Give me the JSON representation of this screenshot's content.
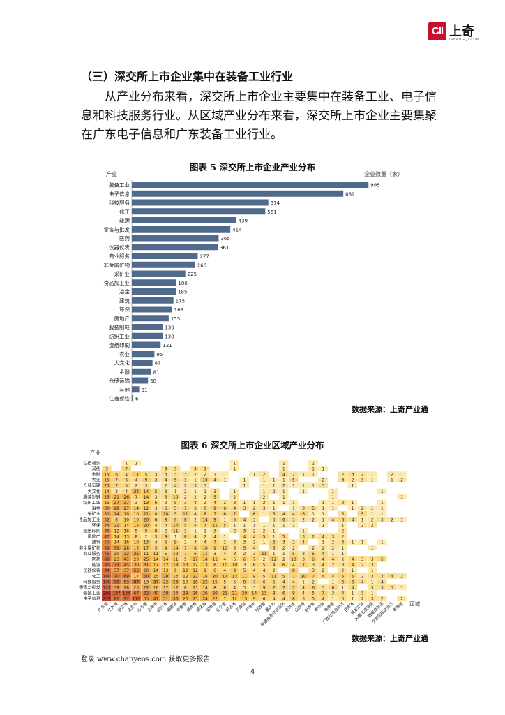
{
  "logo": {
    "text": "上奇",
    "mark": "CII",
    "sub": "ISHANGQI.COM"
  },
  "section_heading": "（三）深交所上市企业集中在装备工业行业",
  "paragraph": {
    "line1": "从产业分布来看，深交所上市企业主要集中在装备工业、电子信",
    "line2": "息和科技服务行业。从区域产业分布来看，深交所上市企业主要集聚",
    "line3": "在广东电子信息和广东装备工业行业。"
  },
  "figure5": {
    "title": "图表 5  深交所上市企业产业分布",
    "source": "数据来源：上奇产业通"
  },
  "figure6": {
    "title": "图表 6  深交所上市企业区域产业分布",
    "source": "数据来源：上奇产业通"
  },
  "footer": {
    "link_text": "登录 www.chanyeos.com 获取更多报告",
    "page_number": "4"
  },
  "chart_data": [
    {
      "type": "bar",
      "orientation": "horizontal",
      "title": "",
      "xlabel": "企业数量（家）",
      "ylabel": "产业",
      "bar_color": "#4f6a8a",
      "categories": [
        "装备工业",
        "电子信息",
        "科技服务",
        "化工",
        "能源",
        "零售与批发",
        "医药",
        "仪器仪表",
        "商业服务",
        "非金属矿物",
        "采矿业",
        "食品加工业",
        "冶金",
        "建筑",
        "环保",
        "房地产",
        "服装制鞋",
        "纺织工业",
        "造纸印刷",
        "农业",
        "大文化",
        "金融",
        "仓储运输",
        "其他",
        "住宿餐饮"
      ],
      "values": [
        995,
        889,
        574,
        561,
        439,
        414,
        365,
        361,
        277,
        266,
        225,
        186,
        185,
        175,
        169,
        155,
        130,
        130,
        121,
        95,
        87,
        81,
        68,
        31,
        6
      ],
      "xlim": [
        0,
        1000
      ]
    },
    {
      "type": "heatmap",
      "title": "",
      "ylabel": "产业",
      "xlabel": "区域",
      "color_low": "#fdf6c8",
      "color_high": "#c0392b",
      "rows": [
        "住宿餐饮",
        "其他",
        "金融",
        "农业",
        "仓储运输",
        "大文化",
        "服装制鞋",
        "纺织工业",
        "冶金",
        "采矿业",
        "食品加工业",
        "环保",
        "造纸印刷",
        "房地产",
        "建筑",
        "非金属矿物",
        "商业服务",
        "医药",
        "能源",
        "仪器仪表",
        "化工",
        "科技服务",
        "零售与批发",
        "装备工业",
        "电子信息"
      ],
      "columns": [
        "广东省",
        "江苏省",
        "浙江省",
        "北京市",
        "山东省",
        "上海市",
        "四川省",
        "福建省",
        "安徽省",
        "湖南省",
        "湖北省",
        "河南省",
        "辽宁省",
        "河北省",
        "江西省",
        "天津市",
        "陕西省",
        "重庆市",
        "新疆维吾尔自治区",
        "吉林省",
        "山西省",
        "云南省",
        "贵州省",
        "海南省",
        "广西壮族自治区",
        "甘肃省",
        "黑龙江省",
        "内蒙古自治区",
        "西藏自治区",
        "宁夏回族自治区",
        "青海省"
      ],
      "values": [
        [
          null,
          null,
          1,
          1,
          null,
          null,
          null,
          null,
          null,
          null,
          null,
          null,
          null,
          1,
          null,
          null,
          null,
          null,
          1,
          null,
          null,
          1,
          null,
          null,
          null,
          null,
          null,
          null,
          null,
          null,
          null
        ],
        [
          3,
          null,
          7,
          null,
          null,
          null,
          3,
          3,
          null,
          3,
          3,
          null,
          null,
          1,
          null,
          null,
          null,
          null,
          1,
          null,
          null,
          1,
          1,
          null,
          null,
          null,
          null,
          null,
          null,
          null,
          null
        ],
        [
          15,
          6,
          4,
          11,
          5,
          3,
          3,
          3,
          3,
          2,
          2,
          1,
          1,
          null,
          null,
          1,
          2,
          null,
          4,
          2,
          1,
          1,
          null,
          null,
          2,
          3,
          2,
          1,
          null,
          2,
          1
        ],
        [
          15,
          7,
          6,
          4,
          9,
          3,
          4,
          5,
          3,
          1,
          10,
          4,
          1,
          null,
          1,
          null,
          1,
          1,
          1,
          5,
          null,
          null,
          2,
          null,
          3,
          2,
          3,
          1,
          null,
          1,
          2
        ],
        [
          20,
          7,
          5,
          2,
          3,
          null,
          2,
          4,
          2,
          3,
          3,
          null,
          null,
          null,
          1,
          null,
          1,
          1,
          2,
          1,
          1,
          1,
          3,
          null,
          null,
          1,
          null,
          null,
          null,
          null,
          null
        ],
        [
          14,
          2,
          4,
          24,
          14,
          5,
          3,
          1,
          2,
          1,
          1,
          3,
          null,
          1,
          null,
          null,
          1,
          2,
          1,
          null,
          1,
          null,
          null,
          1,
          null,
          null,
          null,
          null,
          1,
          null,
          null
        ],
        [
          25,
          21,
          26,
          7,
          14,
          3,
          5,
          10,
          2,
          2,
          2,
          5,
          null,
          2,
          null,
          null,
          2,
          null,
          1,
          null,
          null,
          null,
          null,
          1,
          null,
          null,
          null,
          null,
          null,
          null,
          1
        ],
        [
          15,
          27,
          27,
          3,
          13,
          6,
          2,
          5,
          3,
          4,
          2,
          4,
          2,
          3,
          1,
          1,
          2,
          1,
          1,
          1,
          null,
          null,
          1,
          1,
          2,
          1,
          null,
          null,
          1,
          null,
          null
        ],
        [
          30,
          28,
          27,
          14,
          12,
          3,
          6,
          5,
          7,
          3,
          6,
          9,
          6,
          4,
          3,
          2,
          3,
          1,
          null,
          1,
          3,
          5,
          1,
          1,
          null,
          1,
          2,
          1,
          1,
          null,
          null
        ],
        [
          30,
          24,
          19,
          10,
          21,
          8,
          18,
          5,
          11,
          4,
          8,
          7,
          6,
          7,
          null,
          6,
          1,
          5,
          4,
          4,
          6,
          1,
          1,
          null,
          3,
          null,
          5,
          1,
          1,
          null,
          null
        ],
        [
          32,
          8,
          10,
          10,
          20,
          6,
          8,
          6,
          8,
          2,
          14,
          9,
          1,
          5,
          4,
          3,
          null,
          3,
          6,
          3,
          2,
          2,
          1,
          4,
          6,
          4,
          1,
          2,
          3,
          2,
          1
        ],
        [
          34,
          21,
          14,
          15,
          20,
          4,
          4,
          14,
          5,
          4,
          7,
          11,
          5,
          1,
          1,
          1,
          1,
          1,
          1,
          1,
          null,
          null,
          1,
          null,
          1,
          null,
          2,
          2,
          null,
          null,
          null
        ],
        [
          36,
          12,
          16,
          5,
          9,
          8,
          2,
          11,
          3,
          1,
          1,
          3,
          null,
          2,
          3,
          2,
          2,
          1,
          null,
          null,
          1,
          null,
          null,
          null,
          2,
          null,
          null,
          null,
          null,
          null,
          null
        ],
        [
          47,
          14,
          13,
          8,
          2,
          5,
          9,
          1,
          8,
          4,
          2,
          4,
          1,
          null,
          4,
          4,
          5,
          1,
          5,
          null,
          3,
          2,
          4,
          3,
          2,
          null,
          null,
          null,
          null,
          null,
          null
        ],
        [
          50,
          14,
          16,
          10,
          13,
          4,
          6,
          9,
          2,
          3,
          4,
          7,
          2,
          3,
          3,
          2,
          1,
          6,
          3,
          2,
          4,
          null,
          1,
          2,
          3,
          1,
          1,
          null,
          1,
          null,
          null
        ],
        [
          59,
          39,
          28,
          15,
          17,
          5,
          9,
          14,
          7,
          8,
          10,
          9,
          10,
          3,
          5,
          4,
          null,
          5,
          2,
          2,
          null,
          2,
          2,
          2,
          1,
          null,
          null,
          1,
          null,
          null,
          null
        ],
        [
          75,
          20,
          32,
          35,
          11,
          11,
          5,
          12,
          7,
          6,
          11,
          3,
          4,
          3,
          2,
          3,
          11,
          1,
          1,
          5,
          2,
          5,
          4,
          1,
          1,
          null,
          null,
          null,
          null,
          null,
          null
        ],
        [
          88,
          23,
          41,
          20,
          25,
          14,
          14,
          11,
          5,
          17,
          14,
          11,
          4,
          5,
          6,
          7,
          2,
          12,
          2,
          10,
          3,
          6,
          4,
          4,
          2,
          4,
          3,
          3,
          5,
          null,
          null
        ],
        [
          90,
          72,
          45,
          30,
          31,
          17,
          12,
          18,
          13,
          12,
          13,
          8,
          10,
          10,
          3,
          6,
          5,
          4,
          6,
          4,
          7,
          3,
          4,
          2,
          3,
          4,
          2,
          3,
          null,
          null,
          null
        ],
        [
          94,
          37,
          37,
          55,
          20,
          14,
          13,
          9,
          12,
          12,
          9,
          6,
          4,
          9,
          5,
          4,
          4,
          2,
          null,
          8,
          null,
          3,
          2,
          null,
          2,
          1,
          null,
          1,
          null,
          null,
          null
        ],
        [
          100,
          70,
          69,
          17,
          50,
          15,
          29,
          13,
          12,
          22,
          16,
          20,
          17,
          13,
          11,
          8,
          5,
          11,
          5,
          7,
          10,
          7,
          4,
          4,
          6,
          6,
          2,
          3,
          3,
          4,
          2
        ],
        [
          108,
          96,
          53,
          87,
          13,
          37,
          22,
          23,
          10,
          18,
          22,
          15,
          5,
          5,
          8,
          7,
          6,
          5,
          4,
          4,
          1,
          2,
          null,
          1,
          6,
          6,
          4,
          1,
          4,
          null,
          null
        ],
        [
          122,
          39,
          28,
          23,
          27,
          16,
          17,
          17,
          8,
          13,
          14,
          8,
          8,
          4,
          3,
          3,
          9,
          7,
          7,
          7,
          4,
          6,
          3,
          6,
          1,
          4,
          null,
          3,
          3,
          3,
          1
        ],
        [
          298,
          137,
          134,
          67,
          62,
          40,
          38,
          23,
          29,
          26,
          26,
          26,
          21,
          21,
          20,
          14,
          13,
          8,
          6,
          8,
          4,
          5,
          7,
          3,
          4,
          1,
          3,
          1,
          null,
          null,
          null
        ],
        [
          279,
          82,
          97,
          110,
          33,
          41,
          31,
          36,
          20,
          23,
          24,
          22,
          7,
          12,
          15,
          9,
          6,
          4,
          4,
          8,
          3,
          5,
          4,
          1,
          3,
          1,
          2,
          3,
          2,
          null,
          2
        ]
      ]
    }
  ]
}
